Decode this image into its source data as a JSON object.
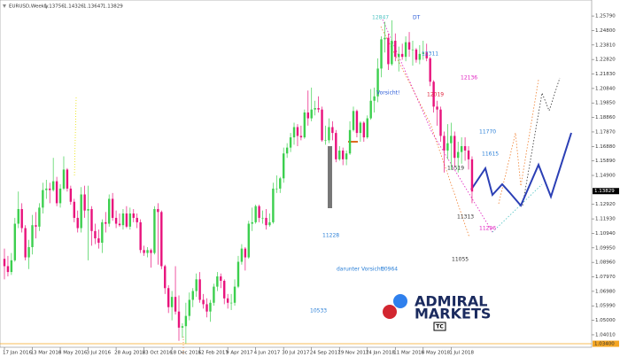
{
  "chart_data": {
    "type": "candlestick",
    "symbol": "EURUSD,Weekly",
    "ohlc_header": [
      1.13756,
      1.14326,
      1.13647,
      1.13829
    ],
    "up_color": "#3ccf4e",
    "down_color": "#e8127c",
    "ylim": [
      1.0316,
      1.264
    ],
    "yticks": [
      {
        "value": 1.2579,
        "label": "1.25790"
      },
      {
        "value": 1.248,
        "label": "1.24800"
      },
      {
        "value": 1.2381,
        "label": "1.23810"
      },
      {
        "value": 1.2282,
        "label": "1.22820"
      },
      {
        "value": 1.2183,
        "label": "1.21830"
      },
      {
        "value": 1.2084,
        "label": "1.20840"
      },
      {
        "value": 1.1985,
        "label": "1.19850"
      },
      {
        "value": 1.1886,
        "label": "1.18860"
      },
      {
        "value": 1.1787,
        "label": "1.17870"
      },
      {
        "value": 1.1688,
        "label": "1.16880"
      },
      {
        "value": 1.1589,
        "label": "1.15890"
      },
      {
        "value": 1.149,
        "label": "1.14900"
      },
      {
        "value": 1.1292,
        "label": "1.12920"
      },
      {
        "value": 1.1193,
        "label": "1.11930"
      },
      {
        "value": 1.1094,
        "label": "1.10940"
      },
      {
        "value": 1.0995,
        "label": "1.09950"
      },
      {
        "value": 1.0896,
        "label": "1.08960"
      },
      {
        "value": 1.0797,
        "label": "1.07970"
      },
      {
        "value": 1.0698,
        "label": "1.06980"
      },
      {
        "value": 1.0599,
        "label": "1.05990"
      },
      {
        "value": 1.05,
        "label": "1.05000"
      },
      {
        "value": 1.0401,
        "label": "1.04010"
      }
    ],
    "last_price": 1.13829,
    "support_line": {
      "value": 1.034,
      "label": "1.03400",
      "color": "#f5a623"
    },
    "x_labels": [
      {
        "value": 0,
        "label": "17 Jan 2016"
      },
      {
        "value": 8,
        "label": "13 Mar 2016"
      },
      {
        "value": 16,
        "label": "8 May 2016"
      },
      {
        "value": 24,
        "label": "3 Jul 2016"
      },
      {
        "value": 32,
        "label": "28 Aug 2016"
      },
      {
        "value": 40,
        "label": "23 Oct 2016"
      },
      {
        "value": 48,
        "label": "18 Dec 2016"
      },
      {
        "value": 56,
        "label": "12 Feb 2017"
      },
      {
        "value": 64,
        "label": "9 Apr 2017"
      },
      {
        "value": 72,
        "label": "4 Jun 2017"
      },
      {
        "value": 80,
        "label": "30 Jul 2017"
      },
      {
        "value": 88,
        "label": "24 Sep 2017"
      },
      {
        "value": 96,
        "label": "19 Nov 2017"
      },
      {
        "value": 104,
        "label": "14 Jan 2018"
      },
      {
        "value": 112,
        "label": "11 Mar 2018"
      },
      {
        "value": 120,
        "label": "6 May 2018"
      },
      {
        "value": 128,
        "label": "1 Jul 2018"
      }
    ],
    "annotations": [
      {
        "text": "12847",
        "color": "#4fc3c3"
      },
      {
        "text": "DT",
        "color": "#2a5bd7"
      },
      {
        "text": "12311",
        "color": "#2a7fd7"
      },
      {
        "text": "12136",
        "color": "#e020c0"
      },
      {
        "text": "Vorsicht!",
        "color": "#2a5bd7"
      },
      {
        "text": "12019",
        "color": "#e0203a"
      },
      {
        "text": "11770",
        "color": "#2a7fd7"
      },
      {
        "text": "11615",
        "color": "#2a7fd7"
      },
      {
        "text": "11519",
        "color": "#333333"
      },
      {
        "text": "11313",
        "color": "#333333"
      },
      {
        "text": "11296",
        "color": "#e020c0"
      },
      {
        "text": "11228",
        "color": "#2a7fd7"
      },
      {
        "text": "11055",
        "color": "#333333"
      },
      {
        "text": "darunter Vorsicht!",
        "color": "#2a7fd7"
      },
      {
        "text": "10964",
        "color": "#2a7fd7"
      },
      {
        "text": "10533",
        "color": "#2a7fd7"
      }
    ],
    "logo": {
      "line1": "ADMIRAL",
      "line2": "MARKETS",
      "badge": "TC"
    },
    "candles": [
      [
        1.092,
        1.099,
        1.078,
        1.087
      ],
      [
        1.087,
        1.094,
        1.08,
        1.083
      ],
      [
        1.083,
        1.096,
        1.081,
        1.091
      ],
      [
        1.091,
        1.12,
        1.09,
        1.116
      ],
      [
        1.116,
        1.138,
        1.113,
        1.126
      ],
      [
        1.126,
        1.13,
        1.11,
        1.113
      ],
      [
        1.113,
        1.115,
        1.091,
        1.093
      ],
      [
        1.093,
        1.105,
        1.085,
        1.1
      ],
      [
        1.1,
        1.122,
        1.095,
        1.115
      ],
      [
        1.115,
        1.124,
        1.106,
        1.114
      ],
      [
        1.114,
        1.13,
        1.111,
        1.127
      ],
      [
        1.127,
        1.144,
        1.123,
        1.139
      ],
      [
        1.139,
        1.146,
        1.133,
        1.14
      ],
      [
        1.14,
        1.144,
        1.13,
        1.139
      ],
      [
        1.139,
        1.161,
        1.138,
        1.145
      ],
      [
        1.145,
        1.148,
        1.128,
        1.13
      ],
      [
        1.13,
        1.143,
        1.127,
        1.14
      ],
      [
        1.14,
        1.162,
        1.139,
        1.153
      ],
      [
        1.153,
        1.154,
        1.138,
        1.14
      ],
      [
        1.14,
        1.142,
        1.129,
        1.131
      ],
      [
        1.131,
        1.133,
        1.117,
        1.12
      ],
      [
        1.12,
        1.125,
        1.11,
        1.113
      ],
      [
        1.113,
        1.141,
        1.11,
        1.136
      ],
      [
        1.136,
        1.142,
        1.12,
        1.125
      ],
      [
        1.125,
        1.142,
        1.091,
        1.126
      ],
      [
        1.126,
        1.128,
        1.101,
        1.111
      ],
      [
        1.111,
        1.116,
        1.102,
        1.106
      ],
      [
        1.106,
        1.112,
        1.099,
        1.103
      ],
      [
        1.103,
        1.119,
        1.096,
        1.117
      ],
      [
        1.117,
        1.124,
        1.11,
        1.116
      ],
      [
        1.116,
        1.136,
        1.114,
        1.133
      ],
      [
        1.133,
        1.137,
        1.118,
        1.12
      ],
      [
        1.12,
        1.125,
        1.113,
        1.116
      ],
      [
        1.116,
        1.123,
        1.114,
        1.115
      ],
      [
        1.115,
        1.126,
        1.112,
        1.123
      ],
      [
        1.123,
        1.128,
        1.113,
        1.114
      ],
      [
        1.114,
        1.127,
        1.112,
        1.123
      ],
      [
        1.123,
        1.126,
        1.117,
        1.12
      ],
      [
        1.12,
        1.123,
        1.113,
        1.117
      ],
      [
        1.117,
        1.119,
        1.096,
        1.098
      ],
      [
        1.098,
        1.101,
        1.094,
        1.096
      ],
      [
        1.096,
        1.1,
        1.093,
        1.098
      ],
      [
        1.098,
        1.099,
        1.086,
        1.096
      ],
      [
        1.096,
        1.128,
        1.095,
        1.126
      ],
      [
        1.126,
        1.13,
        1.088,
        1.124
      ],
      [
        1.124,
        1.125,
        1.085,
        1.087
      ],
      [
        1.087,
        1.088,
        1.068,
        1.072
      ],
      [
        1.072,
        1.074,
        1.055,
        1.059
      ],
      [
        1.059,
        1.07,
        1.05,
        1.066
      ],
      [
        1.066,
        1.087,
        1.054,
        1.056
      ],
      [
        1.056,
        1.067,
        1.036,
        1.045
      ],
      [
        1.045,
        1.048,
        1.038,
        1.046
      ],
      [
        1.046,
        1.062,
        1.034,
        1.053
      ],
      [
        1.053,
        1.069,
        1.05,
        1.064
      ],
      [
        1.064,
        1.072,
        1.059,
        1.07
      ],
      [
        1.07,
        1.082,
        1.066,
        1.078
      ],
      [
        1.078,
        1.083,
        1.062,
        1.064
      ],
      [
        1.064,
        1.068,
        1.058,
        1.061
      ],
      [
        1.061,
        1.065,
        1.052,
        1.056
      ],
      [
        1.056,
        1.064,
        1.049,
        1.062
      ],
      [
        1.062,
        1.075,
        1.06,
        1.073
      ],
      [
        1.073,
        1.083,
        1.07,
        1.08
      ],
      [
        1.08,
        1.082,
        1.072,
        1.077
      ],
      [
        1.077,
        1.078,
        1.061,
        1.065
      ],
      [
        1.065,
        1.068,
        1.058,
        1.062
      ],
      [
        1.062,
        1.068,
        1.057,
        1.062
      ],
      [
        1.062,
        1.078,
        1.06,
        1.073
      ],
      [
        1.073,
        1.094,
        1.072,
        1.09
      ],
      [
        1.09,
        1.102,
        1.088,
        1.099
      ],
      [
        1.099,
        1.1,
        1.084,
        1.093
      ],
      [
        1.093,
        1.118,
        1.092,
        1.116
      ],
      [
        1.116,
        1.127,
        1.111,
        1.117
      ],
      [
        1.117,
        1.129,
        1.116,
        1.128
      ],
      [
        1.128,
        1.129,
        1.117,
        1.12
      ],
      [
        1.12,
        1.125,
        1.116,
        1.12
      ],
      [
        1.12,
        1.126,
        1.112,
        1.115
      ],
      [
        1.115,
        1.123,
        1.114,
        1.117
      ],
      [
        1.117,
        1.144,
        1.116,
        1.14
      ],
      [
        1.14,
        1.149,
        1.137,
        1.14
      ],
      [
        1.14,
        1.148,
        1.137,
        1.147
      ],
      [
        1.147,
        1.168,
        1.144,
        1.164
      ],
      [
        1.164,
        1.171,
        1.161,
        1.168
      ],
      [
        1.168,
        1.178,
        1.165,
        1.175
      ],
      [
        1.175,
        1.185,
        1.17,
        1.182
      ],
      [
        1.182,
        1.184,
        1.169,
        1.176
      ],
      [
        1.176,
        1.183,
        1.173,
        1.175
      ],
      [
        1.175,
        1.194,
        1.174,
        1.192
      ],
      [
        1.192,
        1.207,
        1.183,
        1.188
      ],
      [
        1.188,
        1.209,
        1.186,
        1.194
      ],
      [
        1.194,
        1.2,
        1.19,
        1.195
      ],
      [
        1.195,
        1.203,
        1.192,
        1.194
      ],
      [
        1.194,
        1.196,
        1.172,
        1.173
      ],
      [
        1.173,
        1.183,
        1.17,
        1.173
      ],
      [
        1.173,
        1.188,
        1.171,
        1.182
      ],
      [
        1.182,
        1.186,
        1.173,
        1.178
      ],
      [
        1.178,
        1.18,
        1.158,
        1.16
      ],
      [
        1.16,
        1.169,
        1.159,
        1.166
      ],
      [
        1.166,
        1.168,
        1.156,
        1.16
      ],
      [
        1.16,
        1.166,
        1.156,
        1.164
      ],
      [
        1.164,
        1.186,
        1.163,
        1.18
      ],
      [
        1.18,
        1.196,
        1.179,
        1.193
      ],
      [
        1.193,
        1.194,
        1.175,
        1.178
      ],
      [
        1.178,
        1.186,
        1.172,
        1.185
      ],
      [
        1.185,
        1.186,
        1.172,
        1.175
      ],
      [
        1.175,
        1.19,
        1.174,
        1.188
      ],
      [
        1.188,
        1.208,
        1.187,
        1.2
      ],
      [
        1.2,
        1.209,
        1.192,
        1.203
      ],
      [
        1.203,
        1.229,
        1.199,
        1.222
      ],
      [
        1.222,
        1.244,
        1.216,
        1.242
      ],
      [
        1.242,
        1.254,
        1.233,
        1.243
      ],
      [
        1.243,
        1.246,
        1.221,
        1.225
      ],
      [
        1.225,
        1.255,
        1.224,
        1.241
      ],
      [
        1.241,
        1.246,
        1.227,
        1.23
      ],
      [
        1.23,
        1.237,
        1.22,
        1.232
      ],
      [
        1.232,
        1.239,
        1.228,
        1.23
      ],
      [
        1.23,
        1.244,
        1.227,
        1.24
      ],
      [
        1.24,
        1.247,
        1.23,
        1.235
      ],
      [
        1.235,
        1.241,
        1.224,
        1.235
      ],
      [
        1.235,
        1.236,
        1.226,
        1.228
      ],
      [
        1.228,
        1.238,
        1.225,
        1.232
      ],
      [
        1.232,
        1.241,
        1.228,
        1.233
      ],
      [
        1.233,
        1.239,
        1.227,
        1.229
      ],
      [
        1.229,
        1.23,
        1.21,
        1.213
      ],
      [
        1.213,
        1.214,
        1.192,
        1.196
      ],
      [
        1.196,
        1.2,
        1.183,
        1.194
      ],
      [
        1.194,
        1.196,
        1.172,
        1.176
      ],
      [
        1.176,
        1.179,
        1.151,
        1.166
      ],
      [
        1.166,
        1.184,
        1.16,
        1.171
      ],
      [
        1.171,
        1.185,
        1.153,
        1.176
      ],
      [
        1.176,
        1.179,
        1.155,
        1.161
      ],
      [
        1.161,
        1.172,
        1.151,
        1.165
      ],
      [
        1.165,
        1.175,
        1.157,
        1.169
      ],
      [
        1.169,
        1.175,
        1.159,
        1.166
      ],
      [
        1.166,
        1.169,
        1.153,
        1.16
      ],
      [
        1.16,
        1.162,
        1.13,
        1.138
      ]
    ]
  }
}
